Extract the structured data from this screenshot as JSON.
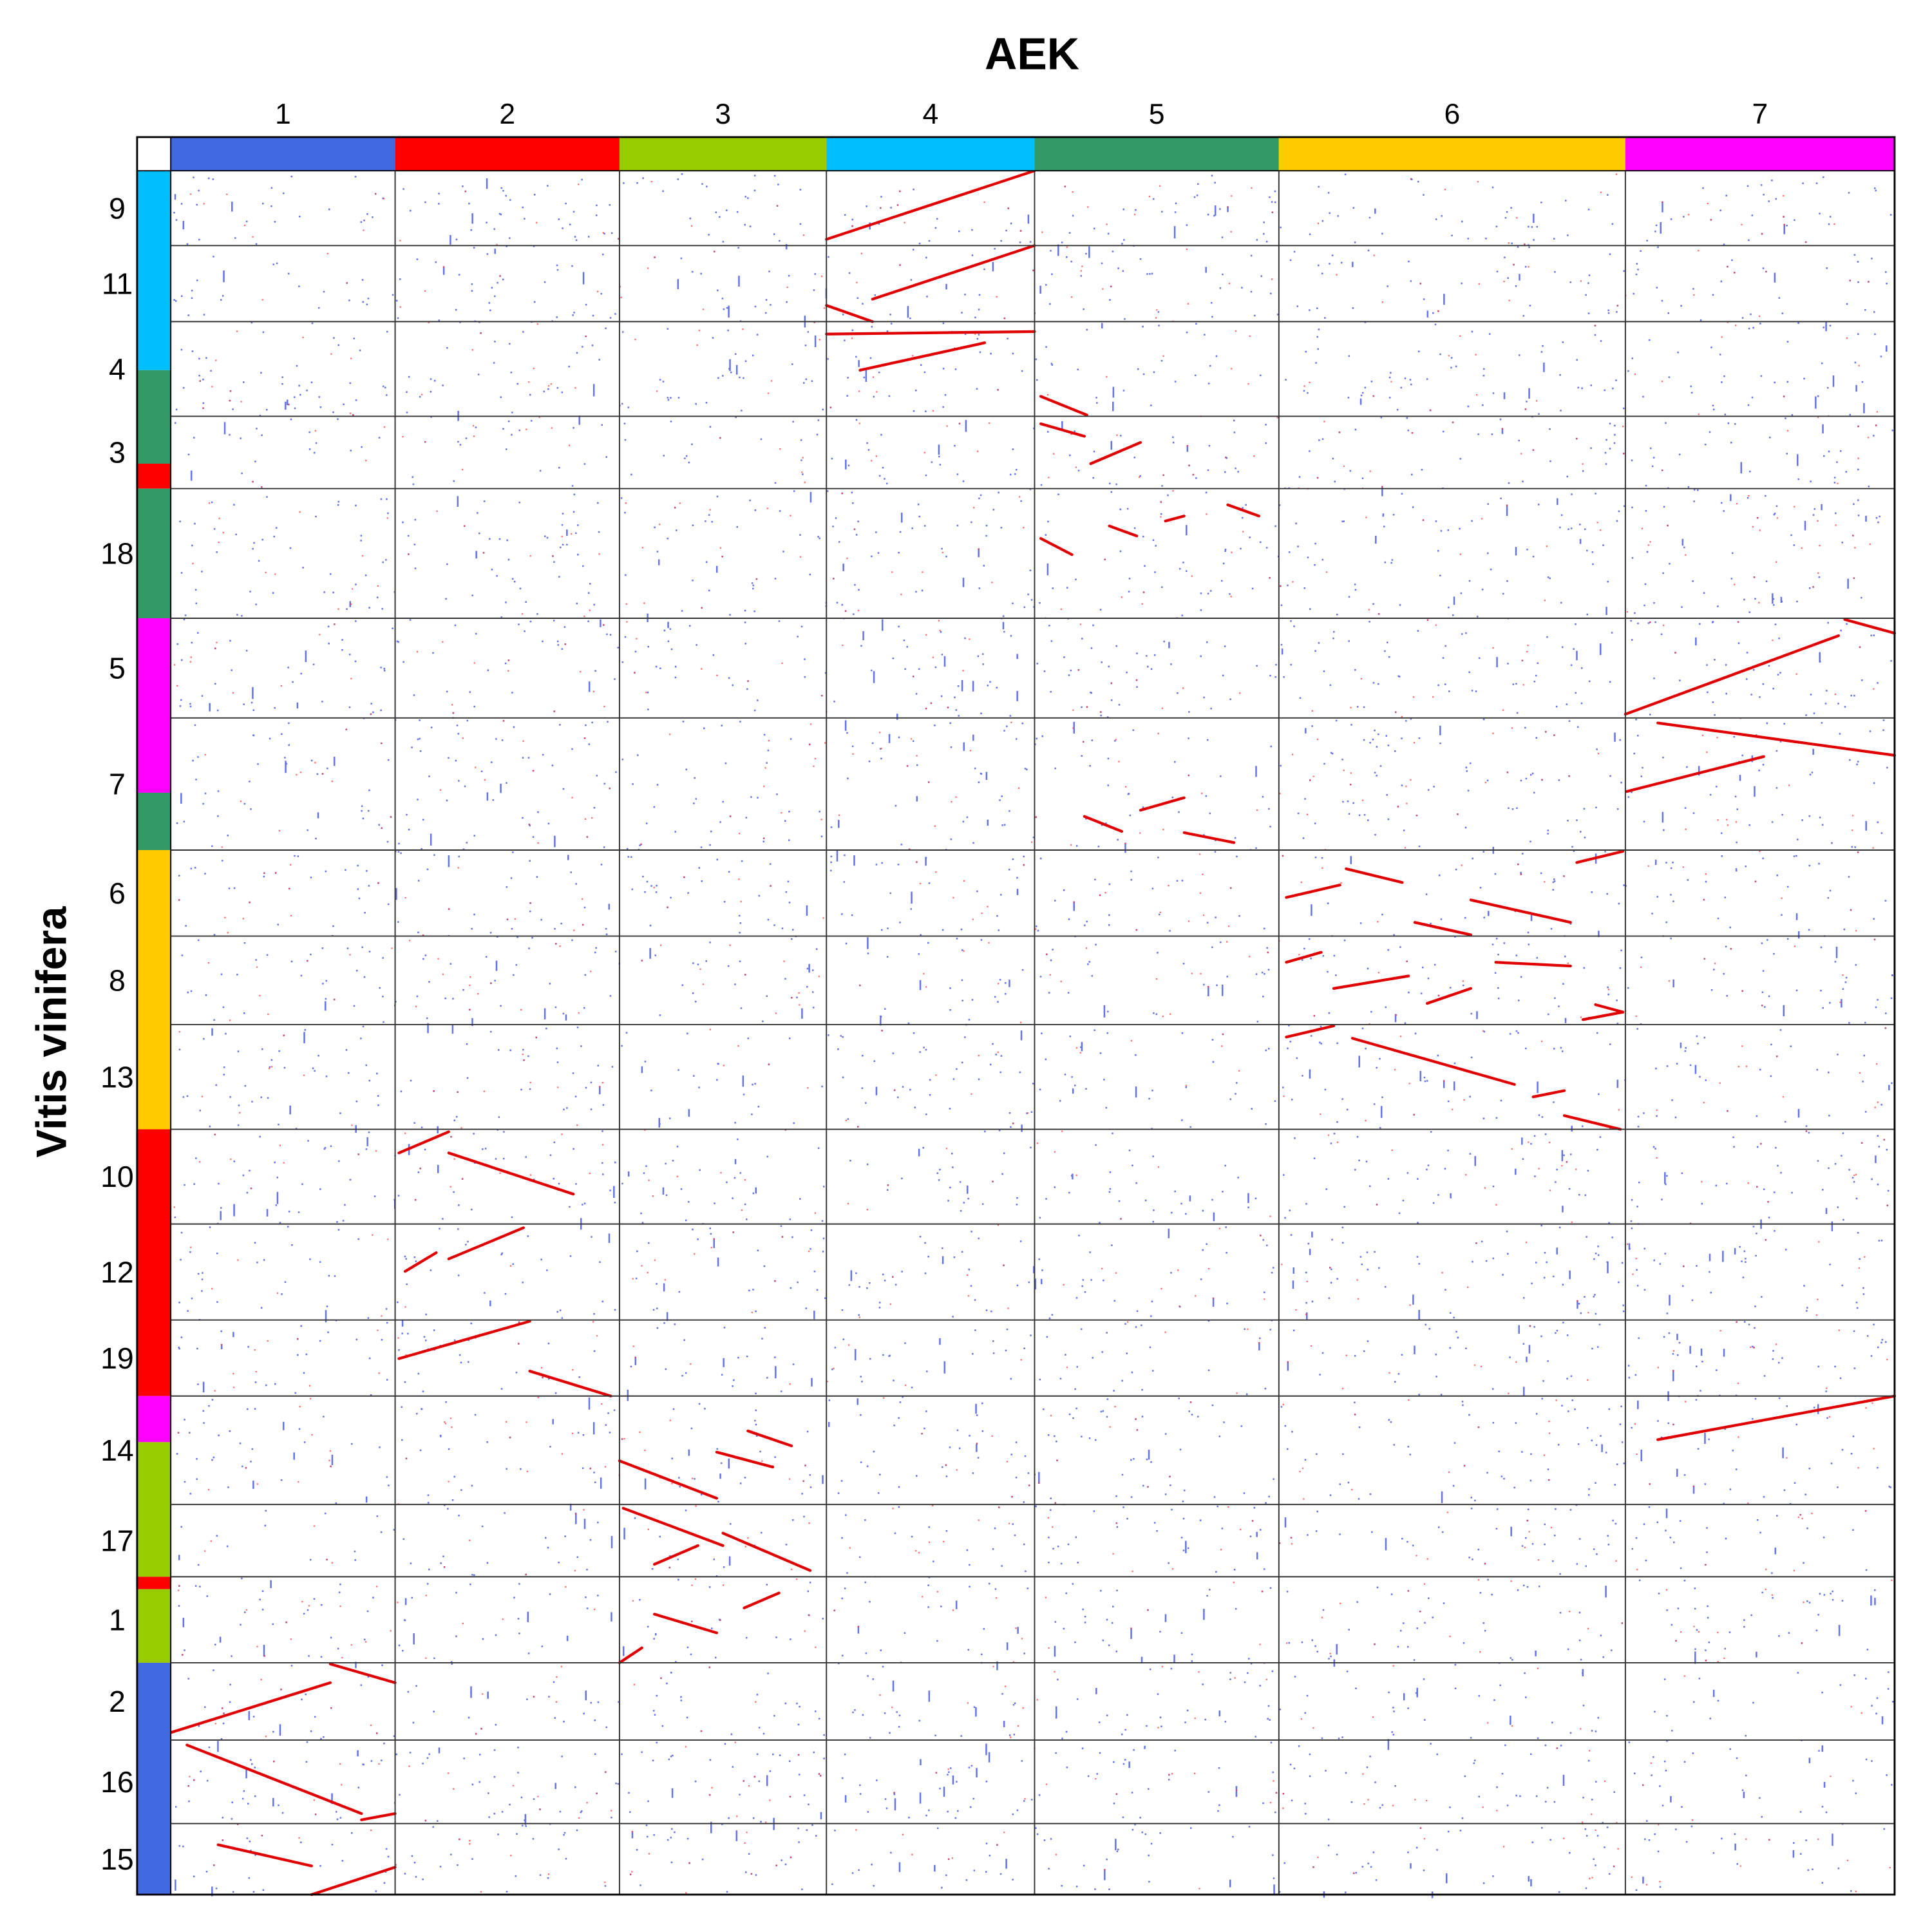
{
  "chart_data": {
    "type": "dotplot",
    "title": "AEK",
    "y_label": "Vitis vinifera",
    "columns": [
      {
        "label": "1",
        "color": "#4169e1"
      },
      {
        "label": "2",
        "color": "#ff0000"
      },
      {
        "label": "3",
        "color": "#99cc00"
      },
      {
        "label": "4",
        "color": "#00bfff"
      },
      {
        "label": "5",
        "color": "#339966"
      },
      {
        "label": "6",
        "color": "#ffcc00"
      },
      {
        "label": "7",
        "color": "#ff00ff"
      }
    ],
    "rows": [
      "9",
      "11",
      "4",
      "3",
      "18",
      "5",
      "7",
      "6",
      "8",
      "13",
      "10",
      "12",
      "19",
      "14",
      "17",
      "1",
      "2",
      "16",
      "15"
    ]
  }
}
